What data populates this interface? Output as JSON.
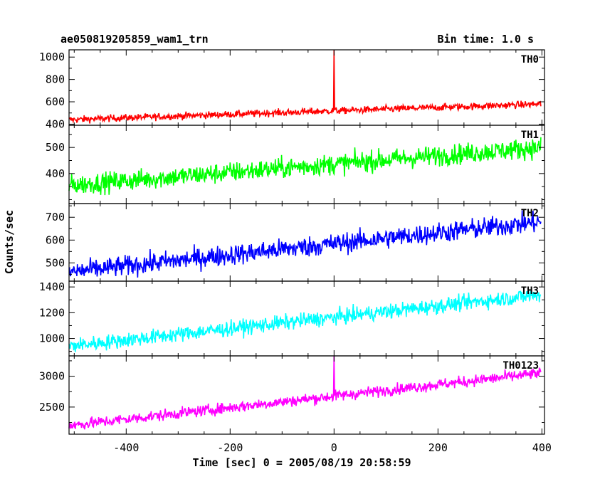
{
  "header": {
    "left_title": "ae050819205859_wam1_trn",
    "right_title": "Bin time: 1.0 s"
  },
  "chart_data": {
    "type": "line",
    "xlabel": "Time [sec] 0 = 2005/08/19 20:58:59",
    "ylabel": "Counts/sec",
    "xlim": [
      -510,
      405
    ],
    "x_ticks": [
      -400,
      -200,
      0,
      200,
      400
    ],
    "bin_time_s": 1.0,
    "panels": [
      {
        "name": "TH0",
        "color": "#ff0000",
        "ylim": [
          390,
          1065
        ],
        "y_ticks": [
          400,
          600,
          800,
          1000
        ],
        "trend_start": 440,
        "trend_end": 580,
        "noise": 22,
        "spike_x": 0,
        "spike_y": 1065
      },
      {
        "name": "TH1",
        "color": "#00ff00",
        "ylim": [
          285,
          585
        ],
        "y_ticks": [
          400,
          500
        ],
        "trend_start": 355,
        "trend_end": 500,
        "noise": 28
      },
      {
        "name": "TH2",
        "color": "#0000ff",
        "ylim": [
          420,
          760
        ],
        "y_ticks": [
          500,
          600,
          700
        ],
        "trend_start": 460,
        "trend_end": 680,
        "noise": 32
      },
      {
        "name": "TH3",
        "color": "#00ffff",
        "ylim": [
          865,
          1445
        ],
        "y_ticks": [
          1000,
          1200,
          1400
        ],
        "trend_start": 940,
        "trend_end": 1340,
        "noise": 42
      },
      {
        "name": "TH0123",
        "color": "#ff00ff",
        "ylim": [
          2060,
          3330
        ],
        "y_ticks": [
          2500,
          3000
        ],
        "trend_start": 2200,
        "trend_end": 3050,
        "noise": 65,
        "spike_x": 0,
        "spike_y": 3330
      }
    ]
  }
}
